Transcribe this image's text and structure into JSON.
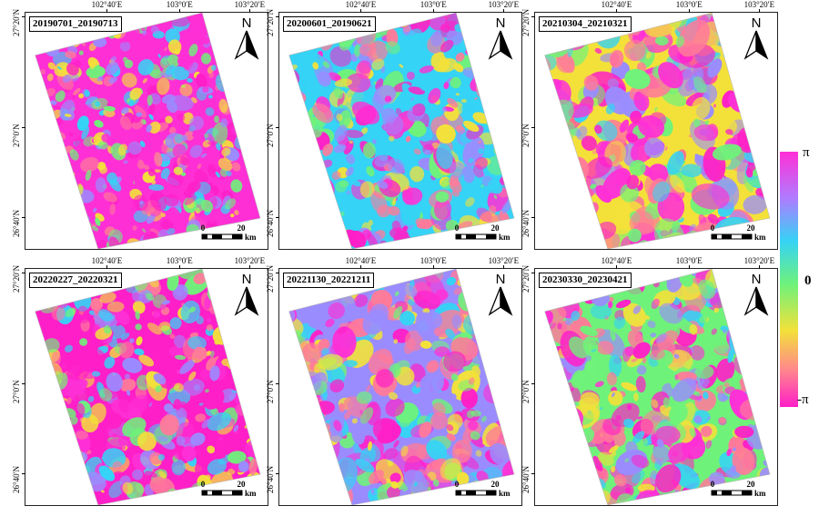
{
  "panels": [
    {
      "label": "20190701_20190713",
      "seed": 1,
      "scale": 0.55
    },
    {
      "label": "20200601_20190621",
      "seed": 2,
      "scale": 0.8
    },
    {
      "label": "20210304_20210321",
      "seed": 3,
      "scale": 1.2
    },
    {
      "label": "20220227_20220321",
      "seed": 4,
      "scale": 0.75
    },
    {
      "label": "20221130_20221211",
      "seed": 5,
      "scale": 1.0
    },
    {
      "label": "20230330_20230421",
      "seed": 6,
      "scale": 0.95
    }
  ],
  "axes": {
    "lon_ticks": [
      "102°40′E",
      "103°0′E",
      "103°20′E"
    ],
    "lat_ticks": [
      "27°20′N",
      "27°0′N",
      "26°40′N"
    ]
  },
  "north_label": "N",
  "scale": {
    "zero": "0",
    "twenty": "20",
    "unit": "km"
  },
  "colorbar": {
    "top": "π",
    "middle": "0",
    "bottom": "-π",
    "colors": [
      "#ff2fd6",
      "#9a8cff",
      "#35d3f5",
      "#6ff27a",
      "#f3e13a",
      "#ff7a9a",
      "#ff1fc8"
    ]
  }
}
